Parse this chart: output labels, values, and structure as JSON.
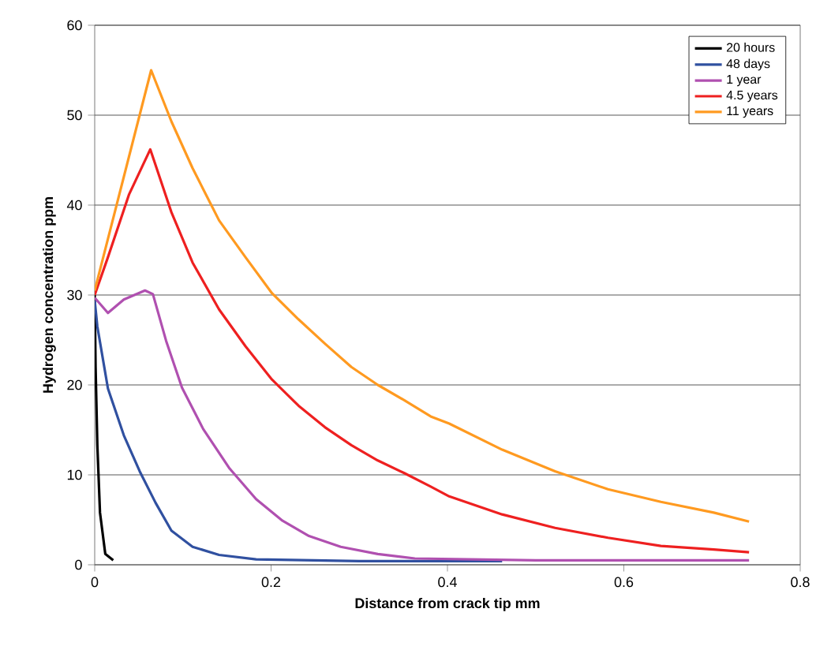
{
  "chart_data": {
    "type": "line",
    "xlabel": "Distance from crack tip   mm",
    "ylabel": "Hydrogen concentration   ppm",
    "xlim": [
      0,
      0.8
    ],
    "ylim": [
      0,
      60
    ],
    "xticks": [
      0,
      0.2,
      0.4,
      0.6,
      0.8
    ],
    "yticks": [
      0,
      10,
      20,
      30,
      40,
      50,
      60
    ],
    "grid": "y",
    "legend": "top right",
    "marker": "none",
    "line_style": "solid",
    "series": [
      {
        "name": "20 hours",
        "color": "#000000",
        "x": [
          0,
          0.001,
          0.003,
          0.006,
          0.012,
          0.021
        ],
        "values": [
          30,
          22,
          13.3,
          5.8,
          1.2,
          0.5
        ]
      },
      {
        "name": "48 days",
        "color": "#3050a0",
        "x": [
          0,
          0.003,
          0.015,
          0.033,
          0.051,
          0.069,
          0.087,
          0.111,
          0.141,
          0.183,
          0.3,
          0.462
        ],
        "values": [
          29.4,
          26.5,
          19.6,
          14.4,
          10.4,
          6.9,
          3.8,
          2.0,
          1.1,
          0.6,
          0.4,
          0.4
        ]
      },
      {
        "name": "1 year",
        "color": "#b050b0",
        "x": [
          0,
          0.015,
          0.033,
          0.057,
          0.066,
          0.081,
          0.099,
          0.123,
          0.153,
          0.183,
          0.213,
          0.243,
          0.279,
          0.321,
          0.363,
          0.5,
          0.742
        ],
        "values": [
          29.7,
          28.0,
          29.5,
          30.5,
          30.1,
          24.9,
          19.7,
          15.1,
          10.7,
          7.3,
          4.9,
          3.2,
          2.0,
          1.2,
          0.7,
          0.5,
          0.5
        ]
      },
      {
        "name": "4.5 years",
        "color": "#ee2020",
        "x": [
          0,
          0.015,
          0.039,
          0.063,
          0.087,
          0.111,
          0.141,
          0.171,
          0.201,
          0.231,
          0.261,
          0.291,
          0.321,
          0.351,
          0.381,
          0.402,
          0.462,
          0.522,
          0.582,
          0.642,
          0.702,
          0.742
        ],
        "values": [
          30,
          34.2,
          41.2,
          46.2,
          39.2,
          33.6,
          28.4,
          24.3,
          20.6,
          17.7,
          15.3,
          13.3,
          11.6,
          10.2,
          8.7,
          7.6,
          5.6,
          4.1,
          3.0,
          2.1,
          1.7,
          1.4
        ]
      },
      {
        "name": "11 years",
        "color": "#ff9a20",
        "x": [
          0,
          0.064,
          0.087,
          0.111,
          0.141,
          0.171,
          0.201,
          0.231,
          0.261,
          0.291,
          0.321,
          0.351,
          0.381,
          0.402,
          0.462,
          0.522,
          0.582,
          0.642,
          0.702,
          0.742
        ],
        "values": [
          30.5,
          55,
          49.3,
          44.1,
          38.3,
          34.2,
          30.2,
          27.3,
          24.6,
          22.0,
          20.0,
          18.3,
          16.5,
          15.7,
          12.8,
          10.4,
          8.4,
          7.0,
          5.8,
          4.8
        ]
      }
    ]
  }
}
